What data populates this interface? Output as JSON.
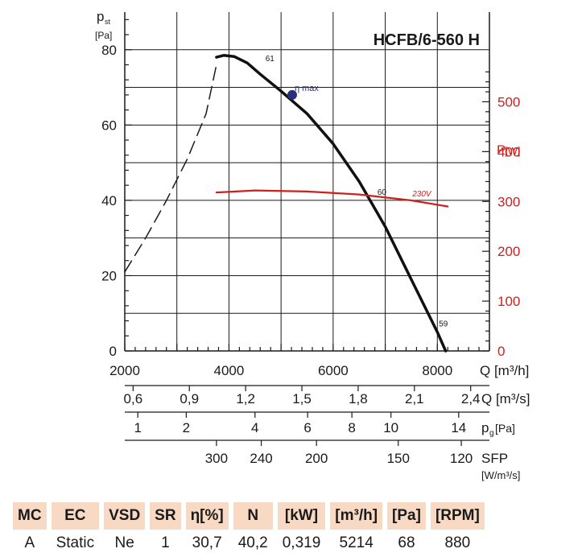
{
  "chart_data": {
    "type": "line",
    "title": "HCFB/6-560 H",
    "left_axis": {
      "label_main": "p",
      "label_sub": "st",
      "unit": "[Pa]",
      "ylim": [
        0,
        90
      ],
      "ticks": [
        "0",
        "20",
        "40",
        "60",
        "80"
      ]
    },
    "right_axis": {
      "label_main": "P",
      "unit": "[W]",
      "ylim": [
        0,
        680
      ],
      "ticks": [
        "0",
        "100",
        "200",
        "300",
        "400",
        "500"
      ],
      "color": "#d0201b"
    },
    "x_axes": [
      {
        "label": "Q [m³/h]",
        "ticks": [
          {
            "label": "2000",
            "q": 2000
          },
          {
            "label": "4000",
            "q": 4000
          },
          {
            "label": "6000",
            "q": 6000
          },
          {
            "label": "8000",
            "q": 8000
          }
        ]
      },
      {
        "label": "Q [m³/s]",
        "ticks": [
          {
            "label": "0,6",
            "q": 2160
          },
          {
            "label": "0,9",
            "q": 3240
          },
          {
            "label": "1,2",
            "q": 4320
          },
          {
            "label": "1,5",
            "q": 5400
          },
          {
            "label": "1,8",
            "q": 6480
          },
          {
            "label": "2,1",
            "q": 7560
          },
          {
            "label": "2,4",
            "q": 8640
          }
        ]
      },
      {
        "label": "p",
        "label_sub": "g",
        "unit": "[Pa]",
        "ticks": [
          {
            "label": "1",
            "q": 2250
          },
          {
            "label": "2",
            "q": 3180
          },
          {
            "label": "4",
            "q": 4500
          },
          {
            "label": "6",
            "q": 5510
          },
          {
            "label": "8",
            "q": 6360
          },
          {
            "label": "10",
            "q": 7110
          },
          {
            "label": "14",
            "q": 8410
          }
        ]
      },
      {
        "label": "SFP",
        "unit": "[W/m³/s]",
        "ticks": [
          {
            "label": "300",
            "q": 3760
          },
          {
            "label": "240",
            "q": 4620
          },
          {
            "label": "200",
            "q": 5680
          },
          {
            "label": "150",
            "q": 7250
          },
          {
            "label": "120",
            "q": 8460
          }
        ]
      }
    ],
    "series": [
      {
        "style": "dashed",
        "color": "#1a1a1a",
        "axis": "left",
        "x": [
          2000,
          2400,
          2800,
          3200,
          3560,
          3760
        ],
        "y": [
          21,
          30,
          40,
          51,
          63,
          76
        ]
      },
      {
        "style": "solid",
        "color": "#111111",
        "axis": "left",
        "x": [
          3760,
          3900,
          4100,
          4350,
          4600,
          5000,
          5500,
          6000,
          6500,
          7000,
          7500,
          8000,
          8160
        ],
        "y": [
          78,
          78.5,
          78.2,
          76.5,
          73.5,
          69,
          63,
          55,
          45,
          33,
          19,
          5,
          0
        ]
      },
      {
        "name": "230V",
        "style": "solid",
        "color": "#d0201b",
        "axis": "right",
        "x": [
          3760,
          4500,
          5500,
          6500,
          7500,
          8200
        ],
        "y": [
          318,
          322,
          320,
          314,
          302,
          290
        ]
      }
    ],
    "annotations": [
      {
        "text": "61",
        "x": 4700,
        "y": 77
      },
      {
        "text": "η max",
        "x": 5260,
        "y": 69
      },
      {
        "text": "60",
        "x": 6850,
        "y": 41.5
      },
      {
        "text": "59",
        "x": 8030,
        "y": 6.5
      },
      {
        "text": "230V",
        "x": 7520,
        "y": 310,
        "axis": "right"
      }
    ],
    "point": {
      "label": "η max",
      "x": 5214,
      "y": 68,
      "color": "#2a2f7a"
    },
    "grid": true
  },
  "table": {
    "headers": [
      "MC",
      "EC",
      "VSD",
      "SR",
      "η[%]",
      "N",
      "[kW]",
      "[m³/h]",
      "[Pa]",
      "[RPM]"
    ],
    "values": [
      "A",
      "Static",
      "Ne",
      "1",
      "30,7",
      "40,2",
      "0,319",
      "5214",
      "68",
      "880"
    ]
  }
}
